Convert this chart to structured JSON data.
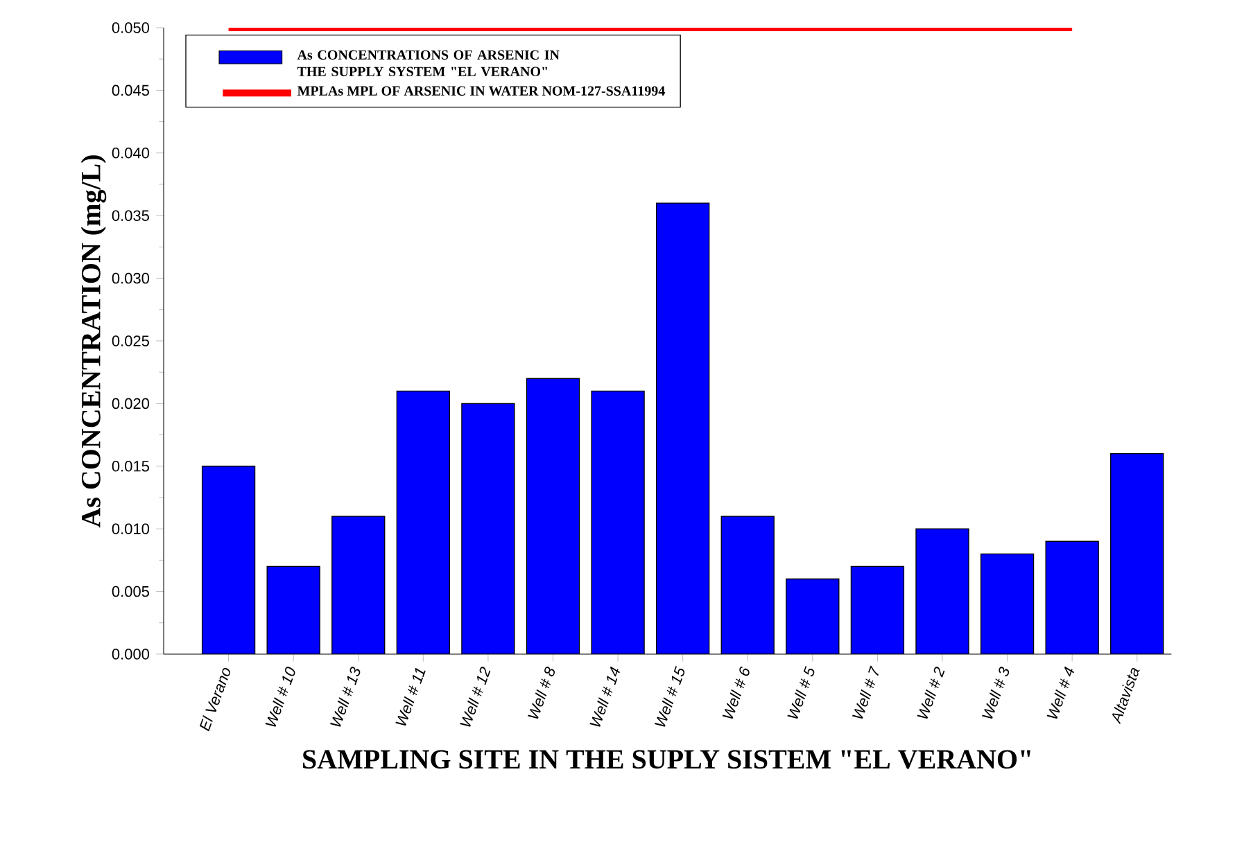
{
  "chart_data": {
    "type": "bar",
    "xlabel": "SAMPLING SITE IN THE SUPLY SISTEM \"EL VERANO\"",
    "ylabel": "As CONCENTRATION (mg/L)",
    "categories": [
      "El Verano",
      "Well # 10",
      "Well # 13",
      "Well # 11",
      "Well # 12",
      "Well # 8",
      "Well # 14",
      "Well # 15",
      "Well # 6",
      "Well # 5",
      "Well # 7",
      "Well # 2",
      "Well # 3",
      "Well # 4",
      "Altavista"
    ],
    "series": [
      {
        "name": "As CONCENTRATIONS OF ARSENIC IN THE SUPPLY SYSTEM \"EL VERANO\"",
        "color": "#0000ff",
        "values": [
          0.015,
          0.007,
          0.011,
          0.021,
          0.02,
          0.022,
          0.021,
          0.036,
          0.011,
          0.006,
          0.007,
          0.01,
          0.008,
          0.009,
          0.016
        ]
      },
      {
        "name": "MPLAs MPL OF ARSENIC IN WATER NOM-127-SSA11994",
        "type": "line",
        "color": "#ff0000",
        "values": [
          0.05,
          0.05,
          0.05,
          0.05,
          0.05,
          0.05,
          0.05,
          0.05,
          0.05,
          0.05,
          0.05,
          0.05,
          0.05,
          0.05,
          null
        ]
      }
    ],
    "ylim": [
      0,
      0.05
    ],
    "yticks": [
      {
        "value": 0,
        "label": "0.000"
      },
      {
        "value": 0.005,
        "label": "0.005"
      },
      {
        "value": 0.01,
        "label": "0.010"
      },
      {
        "value": 0.015,
        "label": "0.015"
      },
      {
        "value": 0.02,
        "label": "0.020"
      },
      {
        "value": 0.025,
        "label": "0.025"
      },
      {
        "value": 0.03,
        "label": "0.030"
      },
      {
        "value": 0.035,
        "label": "0.035"
      },
      {
        "value": 0.04,
        "label": "0.040"
      },
      {
        "value": 0.045,
        "label": "0.045"
      },
      {
        "value": 0.05,
        "label": "0.050"
      }
    ],
    "legend": "top left",
    "grid": false
  }
}
